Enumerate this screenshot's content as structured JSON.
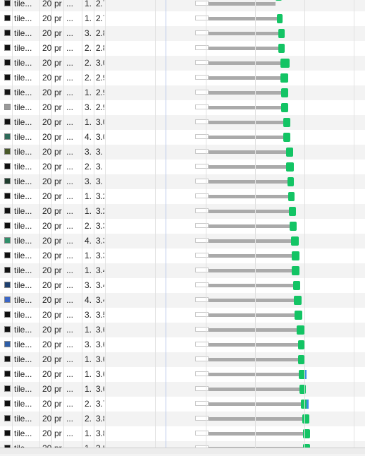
{
  "network_log": {
    "rows": [
      {
        "name": "tile...",
        "status": "20",
        "type": "pr",
        "initiator": "...",
        "size": "1.",
        "time": "2.7",
        "thumb": "#111111",
        "wait_start_ms": 0,
        "wait_end_ms": 18,
        "dl_end_ms": 107,
        "end_ms": 115,
        "blue": false,
        "partial": true
      },
      {
        "name": "tile...",
        "status": "20",
        "type": "pr",
        "initiator": "...",
        "size": "1.",
        "time": "2.7",
        "thumb": "#111111",
        "wait_start_ms": 0,
        "wait_end_ms": 18,
        "dl_end_ms": 108,
        "end_ms": 116,
        "blue": false
      },
      {
        "name": "tile...",
        "status": "20",
        "type": "pr",
        "initiator": "...",
        "size": "3.",
        "time": "2.8",
        "thumb": "#111111",
        "wait_start_ms": 0,
        "wait_end_ms": 18,
        "dl_end_ms": 110,
        "end_ms": 119,
        "blue": false
      },
      {
        "name": "tile...",
        "status": "20",
        "type": "pr",
        "initiator": "...",
        "size": "2.",
        "time": "2.8",
        "thumb": "#111111",
        "wait_start_ms": 0,
        "wait_end_ms": 18,
        "dl_end_ms": 110,
        "end_ms": 119,
        "blue": false
      },
      {
        "name": "tile...",
        "status": "20",
        "type": "pr",
        "initiator": "...",
        "size": "2.",
        "time": "3.0",
        "thumb": "#111111",
        "wait_start_ms": 0,
        "wait_end_ms": 18,
        "dl_end_ms": 113,
        "end_ms": 125,
        "blue": false
      },
      {
        "name": "tile...",
        "status": "20",
        "type": "pr",
        "initiator": "...",
        "size": "2.",
        "time": "2.9",
        "thumb": "#111111",
        "wait_start_ms": 0,
        "wait_end_ms": 18,
        "dl_end_ms": 113,
        "end_ms": 123,
        "blue": false
      },
      {
        "name": "tile...",
        "status": "20",
        "type": "pr",
        "initiator": "...",
        "size": "1.",
        "time": "2.9",
        "thumb": "#111111",
        "wait_start_ms": 0,
        "wait_end_ms": 18,
        "dl_end_ms": 114,
        "end_ms": 123,
        "blue": false
      },
      {
        "name": "tile...",
        "status": "20",
        "type": "pr",
        "initiator": "...",
        "size": "3.",
        "time": "2.9",
        "thumb": "#9a9a9a",
        "wait_start_ms": 0,
        "wait_end_ms": 18,
        "dl_end_ms": 114,
        "end_ms": 123,
        "blue": false
      },
      {
        "name": "tile...",
        "status": "20",
        "type": "pr",
        "initiator": "...",
        "size": "1.",
        "time": "3.0",
        "thumb": "#111111",
        "wait_start_ms": 0,
        "wait_end_ms": 18,
        "dl_end_ms": 117,
        "end_ms": 126,
        "blue": false
      },
      {
        "name": "tile...",
        "status": "20",
        "type": "pr",
        "initiator": "...",
        "size": "4.",
        "time": "3.0",
        "thumb": "#2f6b5a",
        "wait_start_ms": 0,
        "wait_end_ms": 18,
        "dl_end_ms": 117,
        "end_ms": 126,
        "blue": false
      },
      {
        "name": "tile...",
        "status": "20",
        "type": "pr",
        "initiator": "...",
        "size": "3.",
        "time": "3.",
        "thumb": "#4a5a2a",
        "wait_start_ms": 0,
        "wait_end_ms": 18,
        "dl_end_ms": 121,
        "end_ms": 130,
        "blue": false
      },
      {
        "name": "tile...",
        "status": "20",
        "type": "pr",
        "initiator": "...",
        "size": "2.",
        "time": "3.",
        "thumb": "#111111",
        "wait_start_ms": 0,
        "wait_end_ms": 18,
        "dl_end_ms": 121,
        "end_ms": 131,
        "blue": false
      },
      {
        "name": "tile...",
        "status": "20",
        "type": "pr",
        "initiator": "...",
        "size": "3.",
        "time": "3.",
        "thumb": "#1f3d2e",
        "wait_start_ms": 0,
        "wait_end_ms": 18,
        "dl_end_ms": 122,
        "end_ms": 131,
        "blue": false
      },
      {
        "name": "tile...",
        "status": "20",
        "type": "pr",
        "initiator": "...",
        "size": "1.",
        "time": "3.2",
        "thumb": "#111111",
        "wait_start_ms": 0,
        "wait_end_ms": 18,
        "dl_end_ms": 123,
        "end_ms": 132,
        "blue": false
      },
      {
        "name": "tile...",
        "status": "20",
        "type": "pr",
        "initiator": "...",
        "size": "1.",
        "time": "3.2",
        "thumb": "#111111",
        "wait_start_ms": 0,
        "wait_end_ms": 18,
        "dl_end_ms": 124,
        "end_ms": 134,
        "blue": false
      },
      {
        "name": "tile...",
        "status": "20",
        "type": "pr",
        "initiator": "...",
        "size": "2.",
        "time": "3.3",
        "thumb": "#111111",
        "wait_start_ms": 0,
        "wait_end_ms": 18,
        "dl_end_ms": 125,
        "end_ms": 135,
        "blue": false
      },
      {
        "name": "tile...",
        "status": "20",
        "type": "pr",
        "initiator": "...",
        "size": "4.",
        "time": "3.3",
        "thumb": "#2f8f6a",
        "wait_start_ms": 0,
        "wait_end_ms": 18,
        "dl_end_ms": 127,
        "end_ms": 137,
        "blue": false
      },
      {
        "name": "tile...",
        "status": "20",
        "type": "pr",
        "initiator": "...",
        "size": "1.",
        "time": "3.3",
        "thumb": "#111111",
        "wait_start_ms": 0,
        "wait_end_ms": 18,
        "dl_end_ms": 128,
        "end_ms": 138,
        "blue": false
      },
      {
        "name": "tile...",
        "status": "20",
        "type": "pr",
        "initiator": "...",
        "size": "1.",
        "time": "3.4",
        "thumb": "#111111",
        "wait_start_ms": 0,
        "wait_end_ms": 18,
        "dl_end_ms": 128,
        "end_ms": 138,
        "blue": false
      },
      {
        "name": "tile...",
        "status": "20",
        "type": "pr",
        "initiator": "...",
        "size": "3.",
        "time": "3.4",
        "thumb": "#1e3f6e",
        "wait_start_ms": 0,
        "wait_end_ms": 18,
        "dl_end_ms": 130,
        "end_ms": 139,
        "blue": false
      },
      {
        "name": "tile...",
        "status": "20",
        "type": "pr",
        "initiator": "...",
        "size": "4.",
        "time": "3.4",
        "thumb": "#3a66c7",
        "wait_start_ms": 0,
        "wait_end_ms": 18,
        "dl_end_ms": 131,
        "end_ms": 141,
        "blue": false
      },
      {
        "name": "tile...",
        "status": "20",
        "type": "pr",
        "initiator": "...",
        "size": "3.",
        "time": "3.5",
        "thumb": "#111111",
        "wait_start_ms": 0,
        "wait_end_ms": 18,
        "dl_end_ms": 132,
        "end_ms": 142,
        "blue": false
      },
      {
        "name": "tile...",
        "status": "20",
        "type": "pr",
        "initiator": "...",
        "size": "1.",
        "time": "3.6",
        "thumb": "#111111",
        "wait_start_ms": 0,
        "wait_end_ms": 18,
        "dl_end_ms": 135,
        "end_ms": 145,
        "blue": false
      },
      {
        "name": "tile...",
        "status": "20",
        "type": "pr",
        "initiator": "...",
        "size": "3.",
        "time": "3.6",
        "thumb": "#2e5ea8",
        "wait_start_ms": 0,
        "wait_end_ms": 18,
        "dl_end_ms": 136,
        "end_ms": 145,
        "blue": false
      },
      {
        "name": "tile...",
        "status": "20",
        "type": "pr",
        "initiator": "...",
        "size": "1.",
        "time": "3.6",
        "thumb": "#111111",
        "wait_start_ms": 0,
        "wait_end_ms": 18,
        "dl_end_ms": 136,
        "end_ms": 145,
        "blue": false
      },
      {
        "name": "tile...",
        "status": "20",
        "type": "pr",
        "initiator": "...",
        "size": "1.",
        "time": "3.6",
        "thumb": "#111111",
        "wait_start_ms": 0,
        "wait_end_ms": 18,
        "dl_end_ms": 137,
        "end_ms": 148,
        "blue": true
      },
      {
        "name": "tile...",
        "status": "20",
        "type": "pr",
        "initiator": "...",
        "size": "1.",
        "time": "3.6",
        "thumb": "#111111",
        "wait_start_ms": 0,
        "wait_end_ms": 18,
        "dl_end_ms": 138,
        "end_ms": 147,
        "blue": false
      },
      {
        "name": "tile...",
        "status": "20",
        "type": "pr",
        "initiator": "...",
        "size": "2.",
        "time": "3.7",
        "thumb": "#111111",
        "wait_start_ms": 0,
        "wait_end_ms": 18,
        "dl_end_ms": 140,
        "end_ms": 150,
        "blue": true
      },
      {
        "name": "tile...",
        "status": "20",
        "type": "pr",
        "initiator": "...",
        "size": "2.",
        "time": "3.8",
        "thumb": "#111111",
        "wait_start_ms": 0,
        "wait_end_ms": 18,
        "dl_end_ms": 142,
        "end_ms": 151,
        "blue": false
      },
      {
        "name": "tile...",
        "status": "20",
        "type": "pr",
        "initiator": "...",
        "size": "1.",
        "time": "3.8",
        "thumb": "#111111",
        "wait_start_ms": 0,
        "wait_end_ms": 18,
        "dl_end_ms": 143,
        "end_ms": 152,
        "blue": false
      },
      {
        "name": "tile...",
        "status": "20",
        "type": "pr",
        "initiator": "...",
        "size": "1.",
        "time": "3.8",
        "thumb": "#111111",
        "wait_start_ms": 0,
        "wait_end_ms": 18,
        "dl_end_ms": 143,
        "end_ms": 152,
        "blue": false
      }
    ]
  },
  "colors": {
    "row_even": "#f3f3f3",
    "row_odd": "#ffffff",
    "waiting_bar": "#ffffff",
    "download_bar": "#aaaaaa",
    "content_bar": "#13c464",
    "blue_marker": "#3c8ee6"
  }
}
